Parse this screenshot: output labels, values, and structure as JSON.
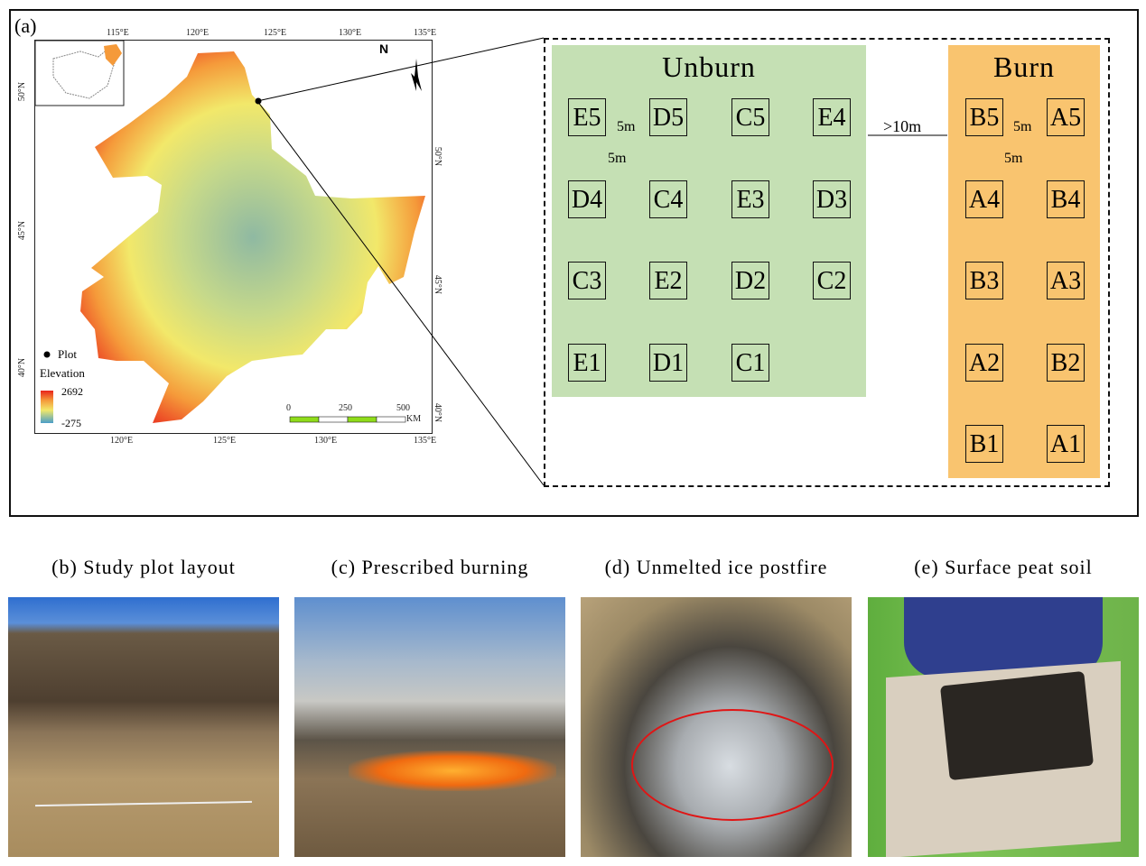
{
  "figure": {
    "panel_a_label": "(a)",
    "map": {
      "top_ticks": [
        "115°E",
        "120°E",
        "125°E",
        "130°E",
        "135°E"
      ],
      "bottom_ticks": [
        "120°E",
        "125°E",
        "130°E",
        "135°E"
      ],
      "left_ticks": [
        "50°N",
        "45°N",
        "40°N"
      ],
      "right_ticks": [
        "50°N",
        "45°N",
        "40°N"
      ],
      "north_label": "N",
      "legend": {
        "plot_label": "Plot",
        "elevation_label": "Elevation",
        "max": "2692",
        "min": "-275"
      },
      "scale": {
        "labels": [
          "0",
          "250",
          "500"
        ],
        "unit": "KM"
      },
      "colors": {
        "high": "#e8241c",
        "mid_high": "#f59a3a",
        "mid": "#f2e86a",
        "low": "#8fb9a2",
        "bar": "#8fdc1a"
      }
    },
    "layout": {
      "unburn": {
        "title": "Unburn",
        "color": "#c5e0b4",
        "rows": [
          [
            "E5",
            "D5",
            "C5",
            "E4"
          ],
          [
            "D4",
            "C4",
            "E3",
            "D3"
          ],
          [
            "C3",
            "E2",
            "D2",
            "C2"
          ],
          [
            "E1",
            "D1",
            "C1"
          ]
        ],
        "spacing_h": "5m",
        "spacing_v": "5m"
      },
      "gap": ">10m",
      "burn": {
        "title": "Burn",
        "color": "#f9c46f",
        "rows": [
          [
            "B5",
            "A5"
          ],
          [
            "A4",
            "B4"
          ],
          [
            "B3",
            "A3"
          ],
          [
            "A2",
            "B2"
          ],
          [
            "B1",
            "A1"
          ]
        ],
        "spacing_h": "5m",
        "spacing_v": "5m"
      }
    },
    "captions": [
      "(b) Study plot layout",
      "(c) Prescribed burning",
      "(d) Unmelted ice postfire",
      "(e) Surface peat soil"
    ]
  }
}
